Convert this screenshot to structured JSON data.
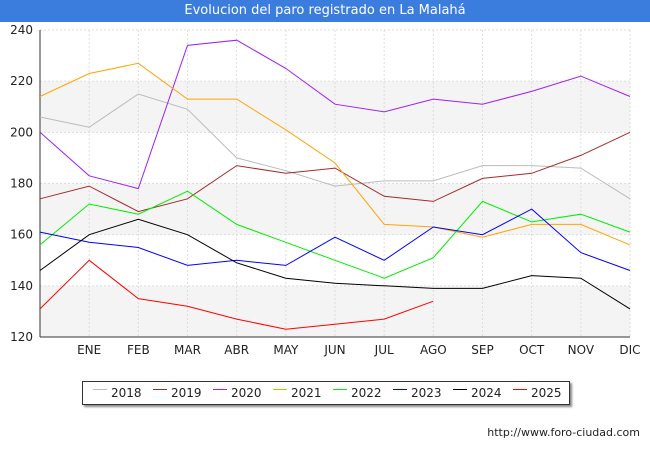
{
  "header": {
    "title": "Evolucion del paro registrado en La Malahá"
  },
  "source": "http://www.foro-ciudad.com",
  "chart_data": {
    "type": "line",
    "title": "Evolucion del paro registrado en La Malahá",
    "categories": [
      "",
      "ENE",
      "FEB",
      "MAR",
      "ABR",
      "MAY",
      "JUN",
      "JUL",
      "AGO",
      "SEP",
      "OCT",
      "NOV",
      "DIC"
    ],
    "ylim": [
      120,
      240
    ],
    "yticks": [
      120,
      140,
      160,
      180,
      200,
      220,
      240
    ],
    "grid": true,
    "legend_position": "bottom",
    "series": [
      {
        "name": "2018",
        "color": "#bbbbbb",
        "values": [
          206,
          202,
          215,
          209,
          190,
          185,
          179,
          181,
          181,
          187,
          187,
          186,
          174
        ]
      },
      {
        "name": "2019",
        "color": "#a52a2a",
        "values": [
          174,
          179,
          169,
          174,
          187,
          184,
          186,
          175,
          173,
          182,
          184,
          191,
          200
        ]
      },
      {
        "name": "2020",
        "color": "#a020f0",
        "values": [
          200,
          183,
          178,
          234,
          236,
          225,
          211,
          208,
          213,
          211,
          216,
          222,
          214
        ]
      },
      {
        "name": "2021",
        "color": "#ffa500",
        "values": [
          214,
          223,
          227,
          213,
          213,
          201,
          188,
          164,
          163,
          159,
          164,
          164,
          156
        ]
      },
      {
        "name": "2022",
        "color": "#00ee00",
        "values": [
          156,
          172,
          168,
          177,
          164,
          157,
          150,
          143,
          151,
          173,
          165,
          168,
          161
        ]
      },
      {
        "name": "2023",
        "color": "#0000ff",
        "values": [
          161,
          157,
          155,
          148,
          150,
          148,
          159,
          150,
          163,
          160,
          170,
          153,
          146
        ]
      },
      {
        "name": "2024",
        "color": "#000000",
        "values": [
          146,
          160,
          166,
          160,
          149,
          143,
          141,
          140,
          139,
          139,
          144,
          143,
          131
        ]
      },
      {
        "name": "2025",
        "color": "#ff0000",
        "values": [
          131,
          150,
          135,
          132,
          127,
          123,
          125,
          127,
          134,
          null,
          null,
          null,
          null
        ]
      }
    ]
  }
}
